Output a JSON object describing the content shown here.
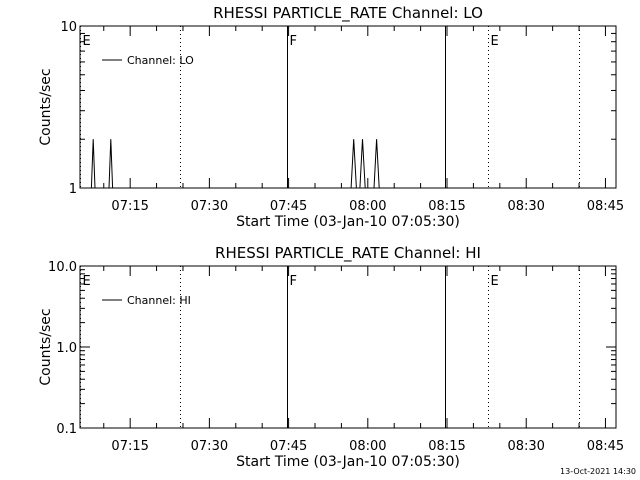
{
  "footer": {
    "timestamp": "13-Oct-2021 14:30"
  },
  "chart_data": [
    {
      "type": "line",
      "title": "RHESSI PARTICLE_RATE Channel: LO",
      "xlabel": "Start Time (03-Jan-10 07:05:30)",
      "ylabel": "Counts/sec",
      "yscale": "log",
      "xlim": [
        "07:05:30",
        "08:47:00"
      ],
      "ylim": [
        1,
        10
      ],
      "x_ticks": [
        "07:15",
        "07:30",
        "07:45",
        "08:00",
        "08:15",
        "08:30",
        "08:45"
      ],
      "y_ticks": [
        "1",
        "10"
      ],
      "legend": {
        "position": "top-left",
        "entries": [
          "Channel: LO"
        ]
      },
      "series": [
        {
          "name": "Channel: LO",
          "x": [
            "07:07:40",
            "07:08:00",
            "07:08:20",
            "07:11:00",
            "07:11:20",
            "07:11:40",
            "07:56:50",
            "07:57:20",
            "07:57:50",
            "07:58:30",
            "07:59:00",
            "07:59:30",
            "08:01:10",
            "08:01:40",
            "08:02:10"
          ],
          "y": [
            1,
            2,
            1,
            1,
            2,
            1,
            1,
            2,
            1,
            1,
            2,
            1,
            1,
            2,
            1
          ]
        }
      ],
      "flag_lines": [
        {
          "time": "07:05:30",
          "label": "E",
          "style": "dotted"
        },
        {
          "time": "07:24:30",
          "label": "",
          "style": "dotted"
        },
        {
          "time": "07:44:40",
          "label": "F",
          "style": "solid"
        },
        {
          "time": "08:14:40",
          "label": "",
          "style": "solid"
        },
        {
          "time": "08:22:40",
          "label": "E",
          "style": "dotted"
        },
        {
          "time": "08:40:00",
          "label": "",
          "style": "dotted"
        }
      ]
    },
    {
      "type": "line",
      "title": "RHESSI PARTICLE_RATE Channel: HI",
      "xlabel": "Start Time (03-Jan-10 07:05:30)",
      "ylabel": "Counts/sec",
      "yscale": "log",
      "xlim": [
        "07:05:30",
        "08:47:00"
      ],
      "ylim": [
        0.1,
        10
      ],
      "x_ticks": [
        "07:15",
        "07:30",
        "07:45",
        "08:00",
        "08:15",
        "08:30",
        "08:45"
      ],
      "y_ticks": [
        "0.1",
        "1.0",
        "10.0"
      ],
      "legend": {
        "position": "top-left",
        "entries": [
          "Channel: HI"
        ]
      },
      "series": [
        {
          "name": "Channel: HI",
          "x": [],
          "y": []
        }
      ],
      "flag_lines": [
        {
          "time": "07:05:30",
          "label": "E",
          "style": "dotted"
        },
        {
          "time": "07:24:30",
          "label": "",
          "style": "dotted"
        },
        {
          "time": "07:44:40",
          "label": "F",
          "style": "solid"
        },
        {
          "time": "08:14:40",
          "label": "",
          "style": "solid"
        },
        {
          "time": "08:22:40",
          "label": "E",
          "style": "dotted"
        },
        {
          "time": "08:40:00",
          "label": "",
          "style": "dotted"
        }
      ]
    }
  ]
}
